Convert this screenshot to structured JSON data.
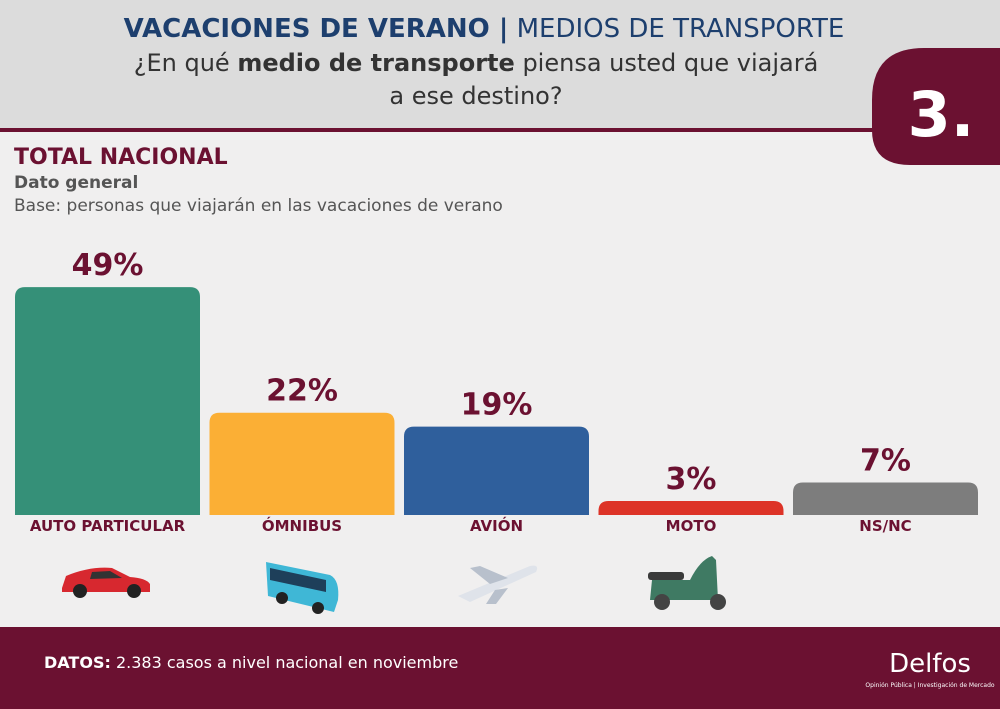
{
  "header": {
    "title_bold": "VACACIONES DE VERANO |",
    "title_light": "MEDIOS DE TRANSPORTE",
    "question_1": "¿En qué",
    "question_bold": "medio de transporte",
    "question_2": "piensa usted que viajará",
    "question_3": "a ese destino?",
    "badge": "3."
  },
  "section": {
    "title": "TOTAL NACIONAL",
    "subtitle": "Dato general",
    "base": "Base: personas que viajarán en las vacaciones de verano"
  },
  "chart_data": {
    "type": "bar",
    "categories": [
      "AUTO PARTICULAR",
      "ÓMNIBUS",
      "AVIÓN",
      "MOTO",
      "NS/NC"
    ],
    "values": [
      49,
      22,
      19,
      3,
      7
    ],
    "value_labels": [
      "49%",
      "22%",
      "19%",
      "3%",
      "7%"
    ],
    "colors": [
      "#359078",
      "#fbaf35",
      "#2f5f9c",
      "#dd3327",
      "#7d7d7d"
    ]
  },
  "footer": {
    "label": "DATOS:",
    "text": "2.383 casos a nivel nacional en noviembre",
    "logo": "Delfos",
    "logo_sub": "Opinión Pública | Investigación de Mercado"
  }
}
